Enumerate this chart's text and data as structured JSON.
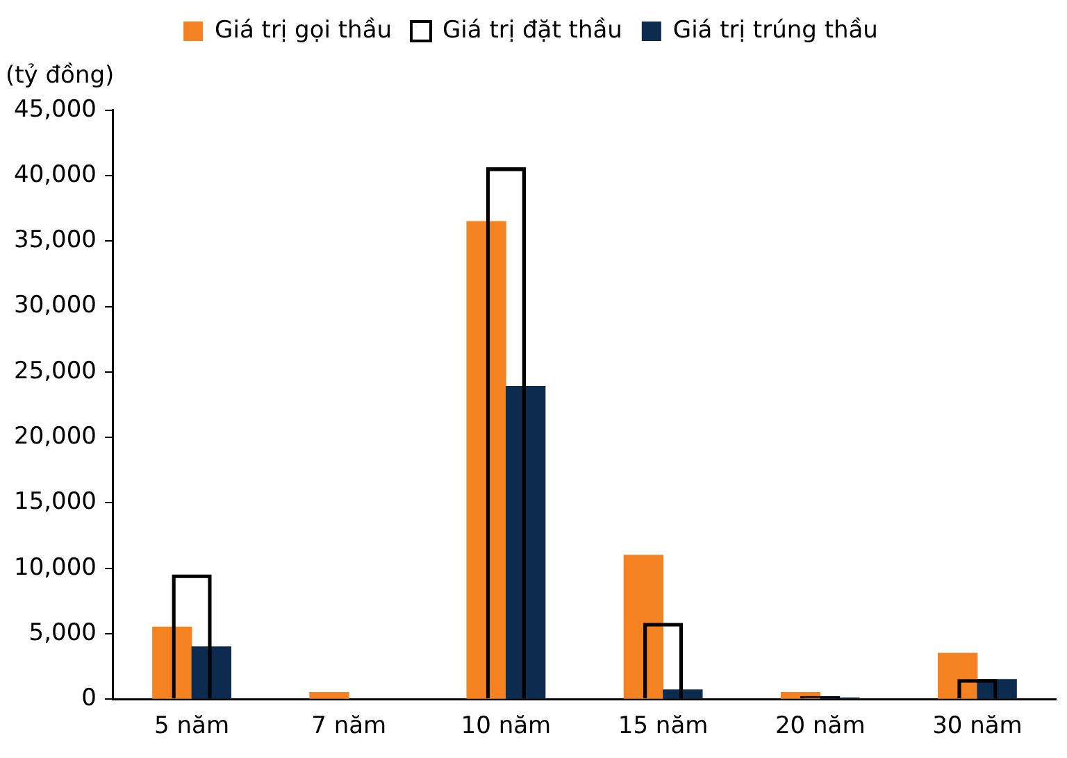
{
  "chart_data": {
    "type": "bar",
    "ylabel": "(tỷ đồng)",
    "categories": [
      "5 năm",
      "7 năm",
      "10 năm",
      "15 năm",
      "20 năm",
      "30 năm"
    ],
    "series": [
      {
        "name": "Giá trị gọi thầu",
        "color": "#f58220",
        "values": [
          5500,
          500,
          36500,
          11000,
          500,
          3500
        ]
      },
      {
        "name": "Giá trị đặt thầu",
        "color": "#000000",
        "values": [
          9500,
          null,
          40600,
          5800,
          200,
          1500
        ]
      },
      {
        "name": "Giá trị trúng thầu",
        "color": "#0d2b4e",
        "values": [
          4000,
          null,
          23900,
          700,
          100,
          1500
        ]
      }
    ],
    "ylim": [
      0,
      45000
    ],
    "yticks": [
      0,
      {
        "value": 5000,
        "label": "5,000"
      },
      {
        "value": 10000,
        "label": "10,000"
      },
      {
        "value": 15000,
        "label": "15,000"
      },
      {
        "value": 20000,
        "label": "20,000"
      },
      {
        "value": 25000,
        "label": "25,000"
      },
      {
        "value": 30000,
        "label": "30,000"
      },
      {
        "value": 35000,
        "label": "35,000"
      },
      {
        "value": 40000,
        "label": "40,000"
      },
      {
        "value": 45000,
        "label": "45,000"
      }
    ],
    "grid": false,
    "legend": "top"
  }
}
